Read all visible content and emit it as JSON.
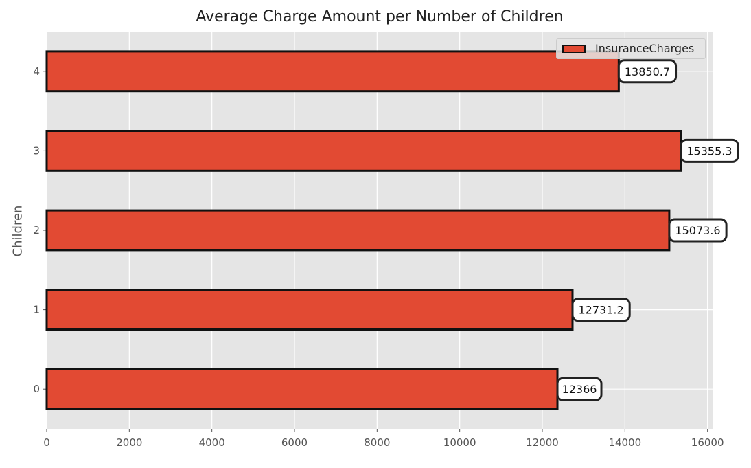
{
  "chart_data": {
    "type": "bar",
    "orientation": "horizontal",
    "title": "Average Charge Amount per Number of Children",
    "ylabel": "Children",
    "xlabel": "",
    "categories": [
      "0",
      "1",
      "2",
      "3",
      "4"
    ],
    "series": [
      {
        "name": "InsuranceCharges",
        "values": [
          12366,
          12731.2,
          15073.6,
          15355.3,
          13850.7
        ],
        "color": "#E24A33",
        "edgecolor": "#111111"
      }
    ],
    "data_labels": [
      "12366",
      "12731.2",
      "15073.6",
      "15355.3",
      "13850.7"
    ],
    "xlim": [
      0,
      16122
    ],
    "xticks": [
      0,
      2000,
      4000,
      6000,
      8000,
      10000,
      12000,
      14000,
      16000
    ],
    "xtick_labels": [
      "0",
      "2000",
      "4000",
      "6000",
      "8000",
      "10000",
      "12000",
      "14000",
      "16000"
    ],
    "grid": true,
    "legend_position": "top-right",
    "style": "ggplot",
    "background_color": "#E5E5E5"
  }
}
